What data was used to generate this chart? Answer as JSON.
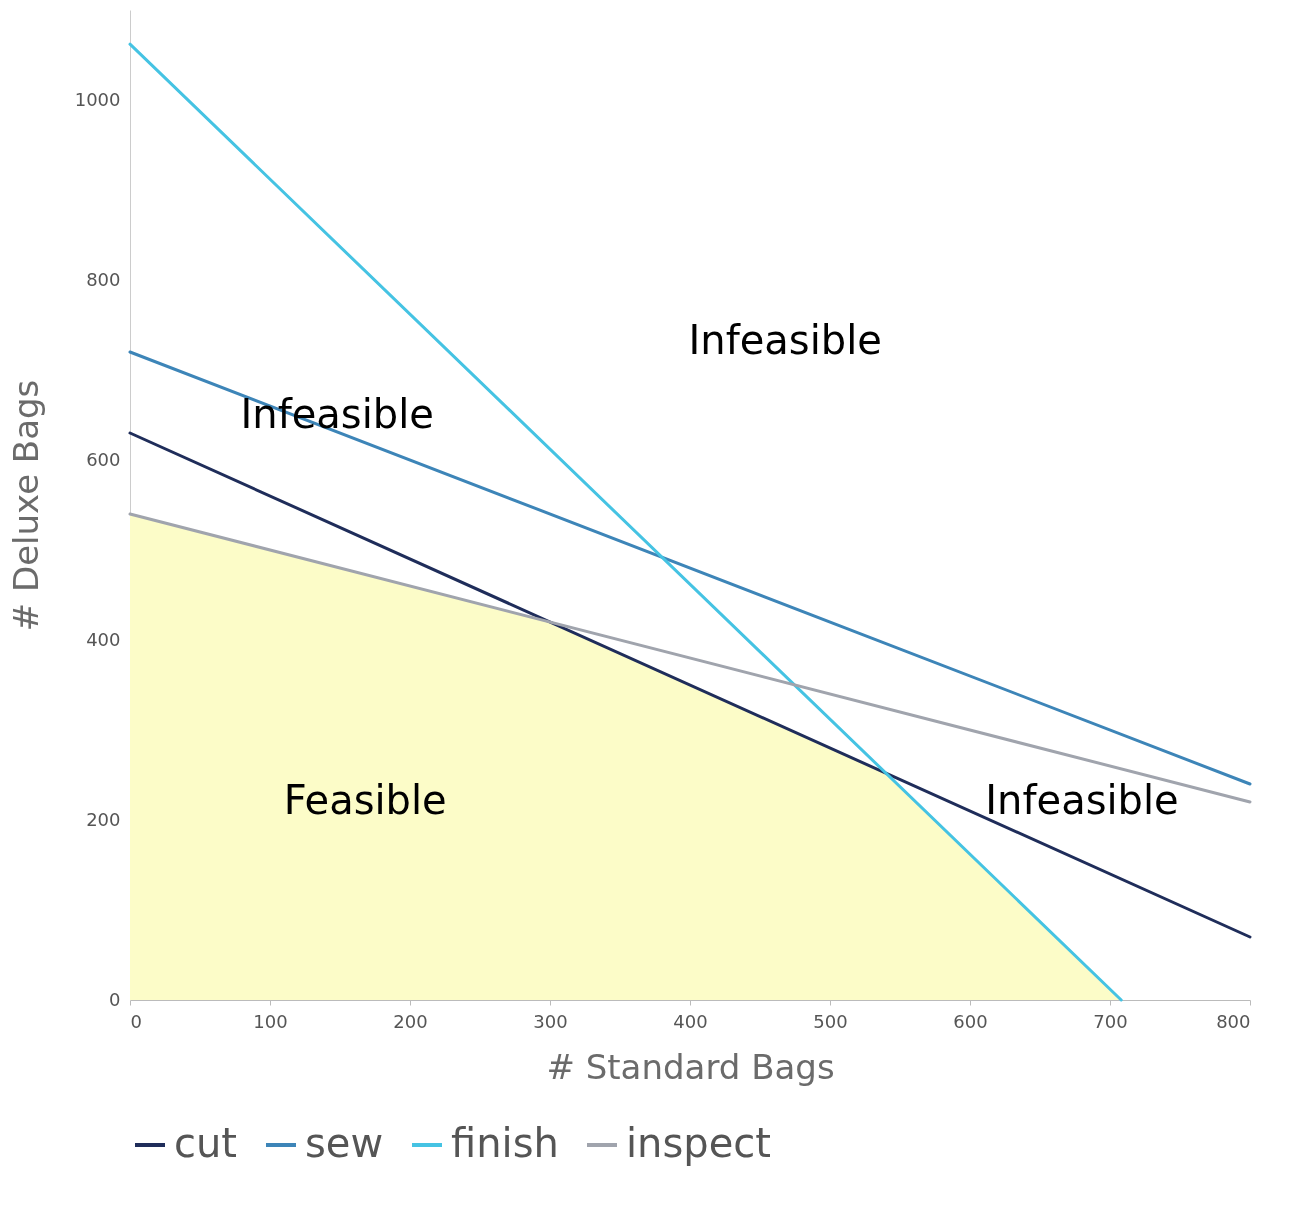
{
  "chart_data": {
    "type": "line",
    "xlabel": "# Standard Bags",
    "ylabel": "# Deluxe Bags",
    "xlim": [
      0,
      800
    ],
    "xticks": [
      0,
      100,
      200,
      300,
      400,
      500,
      600,
      700,
      800
    ],
    "ylim": [
      0,
      1100
    ],
    "yticks": [
      0,
      200,
      400,
      600,
      800,
      1000
    ],
    "grid": false,
    "legend": "bottom",
    "marker": "none",
    "line_style": "solid",
    "series": [
      {
        "type": "area",
        "color": "#fcfcc8",
        "x": [
          0,
          300,
          540,
          708
        ],
        "values": [
          540,
          420,
          252,
          0
        ]
      },
      {
        "name": "cut",
        "color": "#1f2d5a",
        "x": [
          0,
          800
        ],
        "values": [
          630,
          70
        ]
      },
      {
        "name": "sew",
        "color": "#3d85b8",
        "x": [
          0,
          800
        ],
        "values": [
          720,
          240
        ]
      },
      {
        "name": "finish",
        "color": "#45c3e3",
        "x": [
          0,
          708
        ],
        "values": [
          1062,
          0
        ]
      },
      {
        "name": "inspect",
        "color": "#a0a4ad",
        "x": [
          0,
          800
        ],
        "values": [
          540,
          220
        ]
      }
    ],
    "annotations": [
      "Infeasible",
      "Infeasible",
      "Feasible",
      "Infeasible"
    ]
  }
}
